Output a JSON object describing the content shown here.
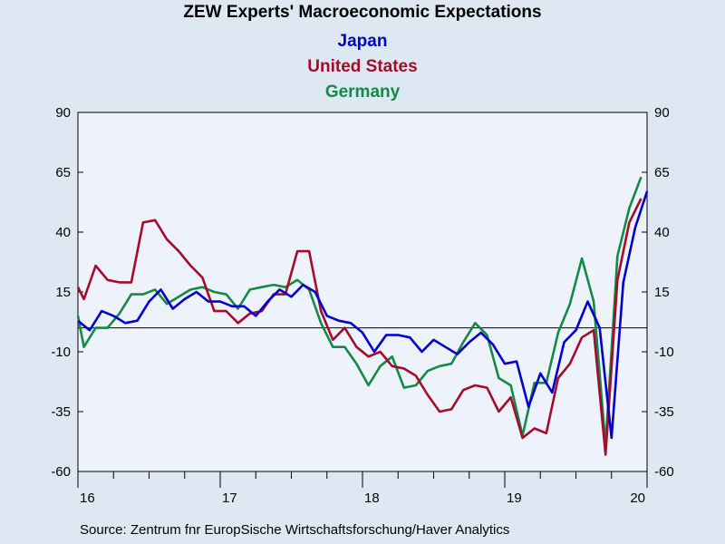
{
  "chart_data": {
    "type": "line",
    "title": "ZEW Experts' Macroeconomic Expectations",
    "ylim": [
      -60,
      90
    ],
    "y_ticks": [
      90,
      65,
      40,
      15,
      -10,
      -35,
      -60
    ],
    "x_tick_labels": [
      "16",
      "17",
      "18",
      "19",
      "20"
    ],
    "xlim": [
      2016,
      2020
    ],
    "reference_line_y": 0,
    "grid": false,
    "series": [
      {
        "name": "Japan",
        "color": "#0000cc",
        "x": [
          2016.0,
          2016.083,
          2016.167,
          2016.25,
          2016.333,
          2016.417,
          2016.5,
          2016.583,
          2016.667,
          2016.75,
          2016.833,
          2016.917,
          2017.0,
          2017.083,
          2017.167,
          2017.25,
          2017.333,
          2017.417,
          2017.5,
          2017.583,
          2017.667,
          2017.75,
          2017.833,
          2017.917,
          2018.0,
          2018.083,
          2018.167,
          2018.25,
          2018.333,
          2018.417,
          2018.5,
          2018.583,
          2018.667,
          2018.75,
          2018.833,
          2018.917,
          2019.0,
          2019.083,
          2019.167,
          2019.25,
          2019.333,
          2019.417,
          2019.5,
          2019.583,
          2019.667,
          2019.75,
          2019.833,
          2019.917,
          2020.0
        ],
        "values": [
          3,
          -1,
          7,
          5,
          2,
          3,
          11,
          16,
          8,
          12,
          15,
          11,
          11,
          9,
          9,
          5,
          11,
          16,
          13,
          18,
          15,
          5,
          3,
          2,
          -2,
          -10,
          -3,
          -3,
          -4,
          -10,
          -5,
          -8,
          -11,
          -6,
          -2,
          -7,
          -15,
          -14,
          -33,
          -19,
          -27,
          -6,
          -1,
          11,
          0,
          -46,
          19,
          42,
          57
        ]
      },
      {
        "name": "United States",
        "color": "#a50b2a",
        "x": [
          2016.0,
          2016.042,
          2016.125,
          2016.208,
          2016.292,
          2016.375,
          2016.458,
          2016.542,
          2016.625,
          2016.708,
          2016.792,
          2016.875,
          2016.958,
          2017.042,
          2017.125,
          2017.208,
          2017.292,
          2017.375,
          2017.458,
          2017.542,
          2017.625,
          2017.708,
          2017.792,
          2017.875,
          2017.958,
          2018.042,
          2018.125,
          2018.208,
          2018.292,
          2018.375,
          2018.458,
          2018.542,
          2018.625,
          2018.708,
          2018.792,
          2018.875,
          2018.958,
          2019.042,
          2019.125,
          2019.208,
          2019.292,
          2019.375,
          2019.458,
          2019.542,
          2019.625,
          2019.708,
          2019.792,
          2019.875,
          2019.958
        ],
        "values": [
          17,
          12,
          26,
          20,
          19,
          19,
          44,
          45,
          37,
          32,
          26,
          21,
          7,
          7,
          2,
          6,
          7,
          14,
          14,
          32,
          32,
          7,
          -5,
          0,
          -8,
          -12,
          -10,
          -16,
          -17,
          -20,
          -28,
          -35,
          -34,
          -26,
          -24,
          -25,
          -35,
          -29,
          -46,
          -42,
          -44,
          -21,
          -15,
          -4,
          -1,
          -53,
          20,
          44,
          54
        ]
      },
      {
        "name": "Germany",
        "color": "#138a46",
        "x": [
          2016.0,
          2016.042,
          2016.125,
          2016.208,
          2016.292,
          2016.375,
          2016.458,
          2016.542,
          2016.625,
          2016.708,
          2016.792,
          2016.875,
          2016.958,
          2017.042,
          2017.125,
          2017.208,
          2017.292,
          2017.375,
          2017.458,
          2017.542,
          2017.625,
          2017.708,
          2017.792,
          2017.875,
          2017.958,
          2018.042,
          2018.125,
          2018.208,
          2018.292,
          2018.375,
          2018.458,
          2018.542,
          2018.625,
          2018.708,
          2018.792,
          2018.875,
          2018.958,
          2019.042,
          2019.125,
          2019.208,
          2019.292,
          2019.375,
          2019.458,
          2019.542,
          2019.625,
          2019.708,
          2019.792,
          2019.875,
          2019.958
        ],
        "values": [
          5,
          -8,
          0,
          0,
          6,
          14,
          14,
          16,
          10,
          13,
          16,
          17,
          15,
          14,
          8,
          16,
          17,
          18,
          17,
          20,
          16,
          2,
          -8,
          -8,
          -15,
          -24,
          -16,
          -12,
          -25,
          -24,
          -18,
          -16,
          -15,
          -6,
          2,
          -3,
          -21,
          -24,
          -45,
          -23,
          -23,
          -2,
          10,
          29,
          11,
          -49,
          30,
          50,
          63
        ]
      }
    ]
  },
  "source": "Source:  Zentrum fnr EuropSische Wirtschaftsforschung/Haver Analytics"
}
